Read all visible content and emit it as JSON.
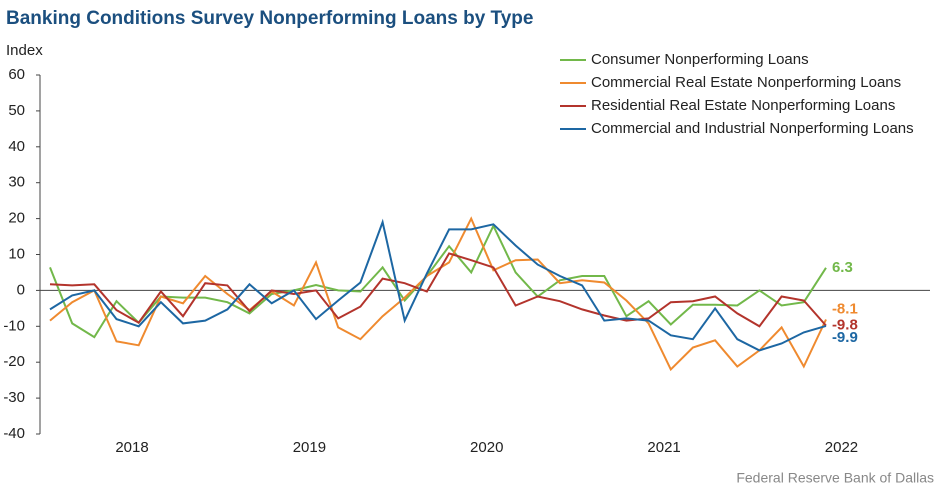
{
  "chart_data": {
    "type": "line",
    "title": "Banking Conditions Survey Nonperforming Loans by Type",
    "y_label": "Index",
    "source": "Federal Reserve Bank of Dallas",
    "categories": [
      null,
      null,
      null,
      null,
      "2018",
      null,
      null,
      null,
      null,
      null,
      null,
      null,
      "2019",
      null,
      null,
      null,
      null,
      null,
      null,
      null,
      "2020",
      null,
      null,
      null,
      null,
      null,
      null,
      null,
      "2021",
      null,
      null,
      null,
      null,
      null,
      null,
      null,
      "2022",
      null,
      null,
      null
    ],
    "ylim": [
      -40,
      60
    ],
    "yticks": [
      -40,
      -30,
      -20,
      -10,
      0,
      10,
      20,
      30,
      40,
      50,
      60
    ],
    "legend": "top-right",
    "series": [
      {
        "name": "Consumer Nonperforming Loans",
        "color": "#72b84a",
        "values": [
          6.4,
          -9.2,
          -13,
          -3,
          -9,
          -1.7,
          -2,
          -2,
          -3.3,
          -6.4,
          -1,
          0,
          1.5,
          0,
          -0.3,
          6.4,
          -2.8,
          4,
          12.3,
          5,
          18,
          5,
          -1.7,
          2.8,
          4,
          4,
          -7.2,
          -3,
          -9.5,
          -4,
          -4,
          -4.2,
          0,
          -4.2,
          -3.3,
          6.3,
          null,
          null,
          null,
          null
        ]
      },
      {
        "name": "Commercial Real Estate Nonperforming Loans",
        "color": "#ef8a2f",
        "values": [
          -8.4,
          -3.3,
          0,
          -14.2,
          -15.3,
          -1.7,
          -3.6,
          4,
          -1,
          -5.5,
          -0.3,
          -4.2,
          7.8,
          -10.3,
          -13.6,
          -7.2,
          -2,
          4,
          7.8,
          20,
          5.6,
          8.4,
          8.6,
          2,
          2.8,
          2.2,
          -2.8,
          -9.2,
          -22,
          -15.9,
          -13.9,
          -21.2,
          -16.7,
          -10.3,
          -21.2,
          -8.1,
          null,
          null,
          null,
          null
        ]
      },
      {
        "name": "Residential Real Estate Nonperforming Loans",
        "color": "#b3342c",
        "values": [
          1.7,
          1.4,
          1.7,
          -5.5,
          -9,
          -0.3,
          -7.2,
          2,
          1.4,
          -5.8,
          0,
          -1,
          0,
          -7.8,
          -4.5,
          3.3,
          2,
          -0.3,
          10.3,
          8.4,
          6.4,
          -4.2,
          -1.7,
          -3,
          -5.3,
          -7,
          -8.4,
          -7.8,
          -3.3,
          -3,
          -1.7,
          -6.4,
          -10,
          -1.7,
          -2.8,
          -9.8,
          null,
          null,
          null,
          null
        ]
      },
      {
        "name": "Commercial and Industrial Nonperforming Loans",
        "color": "#1d67a3",
        "values": [
          -5.3,
          -1.4,
          0,
          -8,
          -10,
          -3.3,
          -9.2,
          -8.4,
          -5.3,
          1.7,
          -3.6,
          0,
          -8,
          -2.8,
          2.2,
          19,
          -8.4,
          4.7,
          17,
          17,
          18.4,
          12.5,
          7.2,
          4,
          1.4,
          -8.4,
          -7.8,
          -8.4,
          -12.5,
          -13.6,
          -5,
          -13.6,
          -16.7,
          -14.8,
          -11.7,
          -9.9,
          null,
          null,
          null,
          null
        ]
      }
    ]
  }
}
